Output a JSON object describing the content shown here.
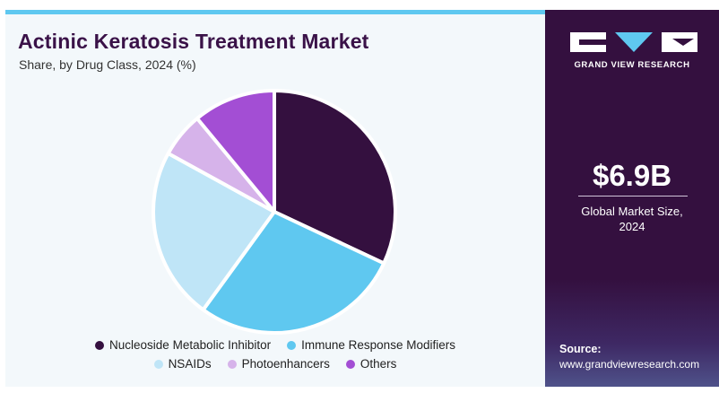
{
  "header": {
    "title": "Actinic Keratosis Treatment Market",
    "subtitle": "Share, by Drug Class, 2024 (%)"
  },
  "chart_data": {
    "type": "pie",
    "title": "Actinic Keratosis Treatment Market",
    "subtitle": "Share, by Drug Class, 2024 (%)",
    "categories": [
      "Nucleoside Metabolic Inhibitor",
      "Immune Response Modifiers",
      "NSAIDs",
      "Photoenhancers",
      "Others"
    ],
    "values": [
      32,
      28,
      23,
      6,
      11
    ],
    "colors": [
      "#34103f",
      "#5fc8f0",
      "#bfe5f7",
      "#d6b3ea",
      "#a34ed4"
    ],
    "legend_position": "bottom"
  },
  "sidebar": {
    "brand": "GRAND VIEW RESEARCH",
    "value": "$6.9B",
    "value_label_line1": "Global Market Size,",
    "value_label_line2": "2024",
    "source_title": "Source:",
    "source_url": "www.grandviewresearch.com"
  }
}
